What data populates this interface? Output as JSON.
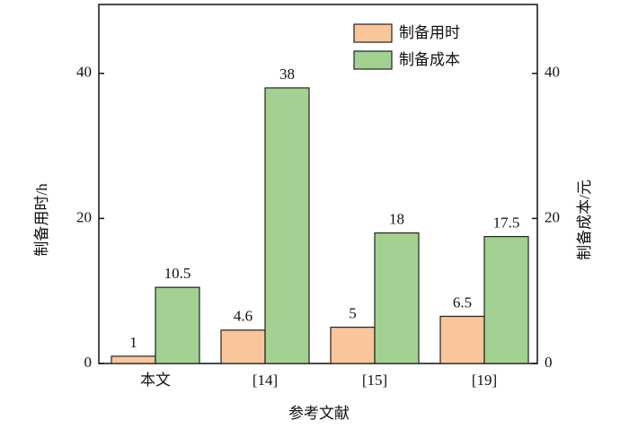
{
  "chart_data": {
    "type": "bar",
    "categories": [
      "本文",
      "[14]",
      "[15]",
      "[19]"
    ],
    "xlabel": "参考文献",
    "ylabel": "制备用时/h",
    "y2label": "制备成本/元",
    "series": [
      {
        "name": "制备用时",
        "color": "#f9c59b",
        "values": [
          1,
          4.6,
          5,
          6.5
        ]
      },
      {
        "name": "制备成本",
        "color": "#a2d192",
        "values": [
          10.5,
          38,
          18,
          17.5
        ],
        "axis": "y2"
      }
    ],
    "ylim": [
      0,
      49.5
    ],
    "yticks": [
      0,
      20,
      40
    ],
    "y2lim": [
      0,
      49.5
    ],
    "y2ticks": [
      0,
      20,
      40
    ],
    "legend": "upper right"
  }
}
